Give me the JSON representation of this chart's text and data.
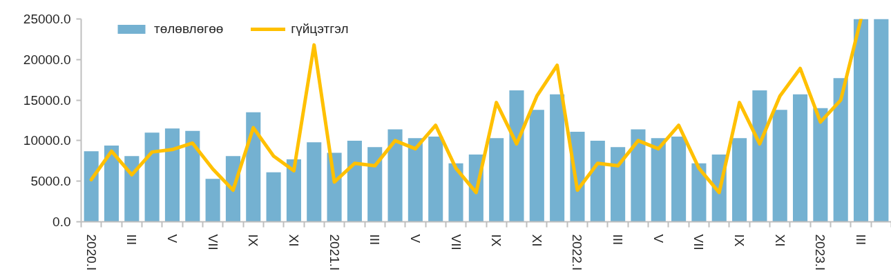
{
  "chart_data": {
    "type": "bar",
    "categories": [
      "2020.I",
      null,
      "III",
      null,
      "V",
      null,
      "VII",
      null,
      "IX",
      null,
      "XI",
      null,
      "2021.I",
      null,
      "III",
      null,
      "V",
      null,
      "VII",
      null,
      "IX",
      null,
      "XI",
      null,
      "2022.I",
      null,
      "III",
      null,
      "V",
      null,
      "VII",
      null,
      "IX",
      null,
      "XI",
      null,
      "2023.I",
      null,
      "III",
      null
    ],
    "series": [
      {
        "name": "төлөвлөгөө",
        "color": "#74b1d1",
        "values": [
          8700,
          9400,
          8100,
          11000,
          11500,
          11200,
          5300,
          8100,
          13500,
          6100,
          7700,
          9800,
          8500,
          10000,
          9200,
          11400,
          10300,
          10500,
          7200,
          8300,
          10300,
          16200,
          13800,
          15700,
          11100,
          10000,
          9200,
          11400,
          10300,
          10500,
          7200,
          8300,
          10300,
          16200,
          13800,
          15700,
          14000,
          17700,
          25000,
          25000
        ]
      },
      {
        "name": "гүйцэтгэл",
        "type": "line",
        "color": "#ffc000",
        "values": [
          5200,
          8700,
          5800,
          8600,
          8900,
          9700,
          6500,
          3900,
          11600,
          8100,
          6300,
          21800,
          4900,
          7200,
          6900,
          10000,
          9000,
          11900,
          6600,
          3600,
          14700,
          9600,
          15500,
          19300,
          3900,
          7200,
          6900,
          10000,
          9000,
          11900,
          6600,
          3600,
          14700,
          9600,
          15500,
          18900,
          12300,
          15000,
          25000,
          null
        ]
      }
    ],
    "ylim": [
      0,
      25000
    ],
    "yticks": [
      {
        "value": 0,
        "label": "0.0"
      },
      {
        "value": 5000,
        "label": "5000.0"
      },
      {
        "value": 10000,
        "label": "10000.0"
      },
      {
        "value": 15000,
        "label": "15000.0"
      },
      {
        "value": 20000,
        "label": "20000.0"
      },
      {
        "value": 25000,
        "label": "25000.0"
      }
    ],
    "legend": "top left"
  }
}
